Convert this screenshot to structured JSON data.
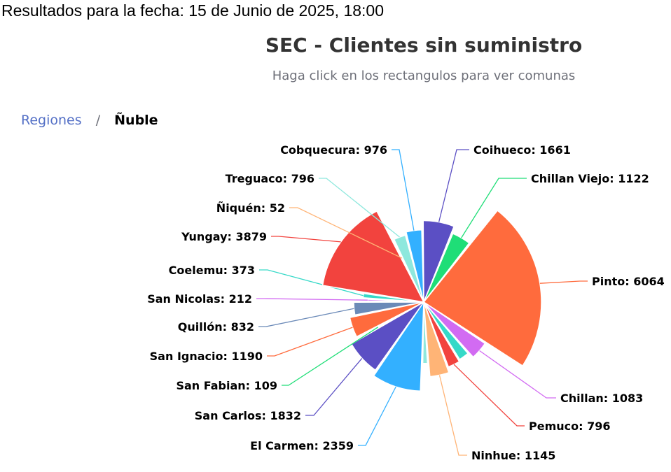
{
  "header": {
    "date_text": "Resultados para la fecha: 15 de Junio de 2025, 18:00"
  },
  "breadcrumb": {
    "root": "Regiones",
    "separator": "/",
    "current": "Ñuble"
  },
  "chart_data": {
    "type": "pie",
    "title": "SEC - Clientes sin suministro",
    "subtitle": "Haga click en los rectangulos para ver comunas",
    "legend": "none",
    "slices": [
      {
        "name": "Coihueco",
        "value": 1661,
        "color": "#5b4fc4"
      },
      {
        "name": "Chillan Viejo",
        "value": 1122,
        "color": "#1fde77"
      },
      {
        "name": "Pinto",
        "value": 6064,
        "color": "#ff6b3d"
      },
      {
        "name": "Chillan",
        "value": 1083,
        "color": "#d26bf2"
      },
      {
        "name": "",
        "value": 700,
        "color": "#36d9c8"
      },
      {
        "name": "Pemuco",
        "value": 796,
        "color": "#f2433e"
      },
      {
        "name": "Ninhue",
        "value": 1145,
        "color": "#ffb476"
      },
      {
        "name": "",
        "value": 400,
        "color": "#8ee8dd"
      },
      {
        "name": "El Carmen",
        "value": 2359,
        "color": "#33b0ff"
      },
      {
        "name": "San Carlos",
        "value": 1832,
        "color": "#5b4fc4"
      },
      {
        "name": "San Fabian",
        "value": 109,
        "color": "#1fde77"
      },
      {
        "name": "San Ignacio",
        "value": 1190,
        "color": "#ff6b3d"
      },
      {
        "name": "Quillón",
        "value": 832,
        "color": "#6b8ab8"
      },
      {
        "name": "San Nicolas",
        "value": 212,
        "color": "#d26bf2"
      },
      {
        "name": "Coelemu",
        "value": 373,
        "color": "#36d9c8"
      },
      {
        "name": "Yungay",
        "value": 3879,
        "color": "#f2433e"
      },
      {
        "name": "Ñiquén",
        "value": 52,
        "color": "#ffb476"
      },
      {
        "name": "Treguaco",
        "value": 796,
        "color": "#8ee8dd"
      },
      {
        "name": "Cobquecura",
        "value": 976,
        "color": "#33b0ff"
      }
    ]
  }
}
